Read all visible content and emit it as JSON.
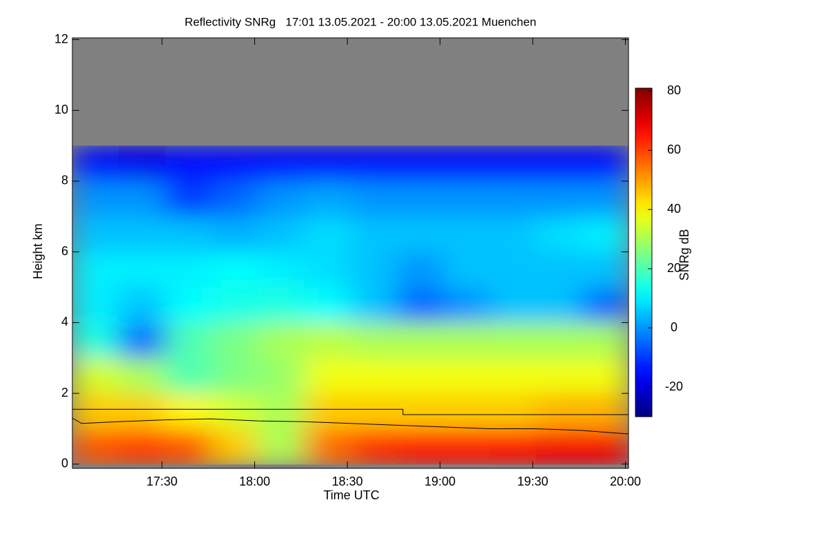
{
  "chart_data": {
    "type": "heatmap",
    "title": "Reflectivity SNRg   17:01 13.05.2021 - 20:00 13.05.2021 Muenchen",
    "xlabel": "Time UTC",
    "ylabel": "Height km",
    "colorbar_label": "SNRg dB",
    "colormap": "jet",
    "background_color": "#808080",
    "xlim": [
      1021,
      1201
    ],
    "xticks": [
      {
        "value": 1050,
        "label": "17:30"
      },
      {
        "value": 1080,
        "label": "18:00"
      },
      {
        "value": 1110,
        "label": "18:30"
      },
      {
        "value": 1140,
        "label": "19:00"
      },
      {
        "value": 1170,
        "label": "19:30"
      },
      {
        "value": 1200,
        "label": "20:00"
      }
    ],
    "ylim": [
      -0.12,
      12.05
    ],
    "yticks": [
      0,
      2,
      4,
      6,
      8,
      10,
      12
    ],
    "clim": [
      -30,
      81
    ],
    "cticks": [
      -20,
      0,
      20,
      40,
      60,
      80
    ],
    "x_bins": [
      1021,
      1036,
      1051,
      1066,
      1081,
      1096,
      1111,
      1126,
      1141,
      1156,
      1171,
      1186,
      1201
    ],
    "y_bins": [
      0,
      1,
      2,
      3,
      4,
      5,
      6,
      7,
      8,
      9,
      10,
      11,
      12
    ],
    "z": [
      [
        58,
        60,
        58,
        45,
        30,
        55,
        62,
        65,
        65,
        66,
        68,
        68
      ],
      [
        45,
        45,
        40,
        35,
        30,
        45,
        45,
        45,
        45,
        45,
        48,
        48
      ],
      [
        35,
        30,
        20,
        25,
        28,
        38,
        38,
        38,
        38,
        38,
        38,
        38
      ],
      [
        15,
        -5,
        20,
        25,
        30,
        32,
        30,
        30,
        30,
        30,
        30,
        30
      ],
      [
        10,
        5,
        12,
        14,
        15,
        12,
        5,
        -5,
        0,
        5,
        5,
        -5
      ],
      [
        10,
        10,
        10,
        12,
        10,
        8,
        5,
        0,
        5,
        5,
        5,
        5
      ],
      [
        5,
        5,
        5,
        3,
        5,
        8,
        5,
        5,
        5,
        5,
        8,
        10
      ],
      [
        0,
        0,
        -10,
        -5,
        0,
        2,
        0,
        0,
        0,
        0,
        0,
        0
      ],
      [
        -15,
        -18,
        -15,
        -15,
        -15,
        -15,
        -15,
        -15,
        -15,
        -15,
        -15,
        -15
      ],
      [
        null,
        null,
        null,
        null,
        null,
        null,
        null,
        null,
        null,
        null,
        null,
        null
      ],
      [
        null,
        null,
        null,
        null,
        null,
        null,
        null,
        null,
        null,
        null,
        null,
        null
      ],
      [
        null,
        null,
        null,
        null,
        null,
        null,
        null,
        null,
        null,
        null,
        null,
        null
      ]
    ],
    "lines": [
      {
        "color": "#000000",
        "x": [
          1021,
          1128,
          1128,
          1201
        ],
        "y": [
          1.55,
          1.55,
          1.4,
          1.4
        ]
      },
      {
        "color": "#000000",
        "x": [
          1021,
          1024,
          1036,
          1051,
          1066,
          1081,
          1096,
          1111,
          1126,
          1141,
          1156,
          1171,
          1186,
          1201
        ],
        "y": [
          1.3,
          1.15,
          1.2,
          1.25,
          1.28,
          1.22,
          1.2,
          1.15,
          1.1,
          1.05,
          1.0,
          1.0,
          0.95,
          0.85
        ]
      }
    ]
  }
}
